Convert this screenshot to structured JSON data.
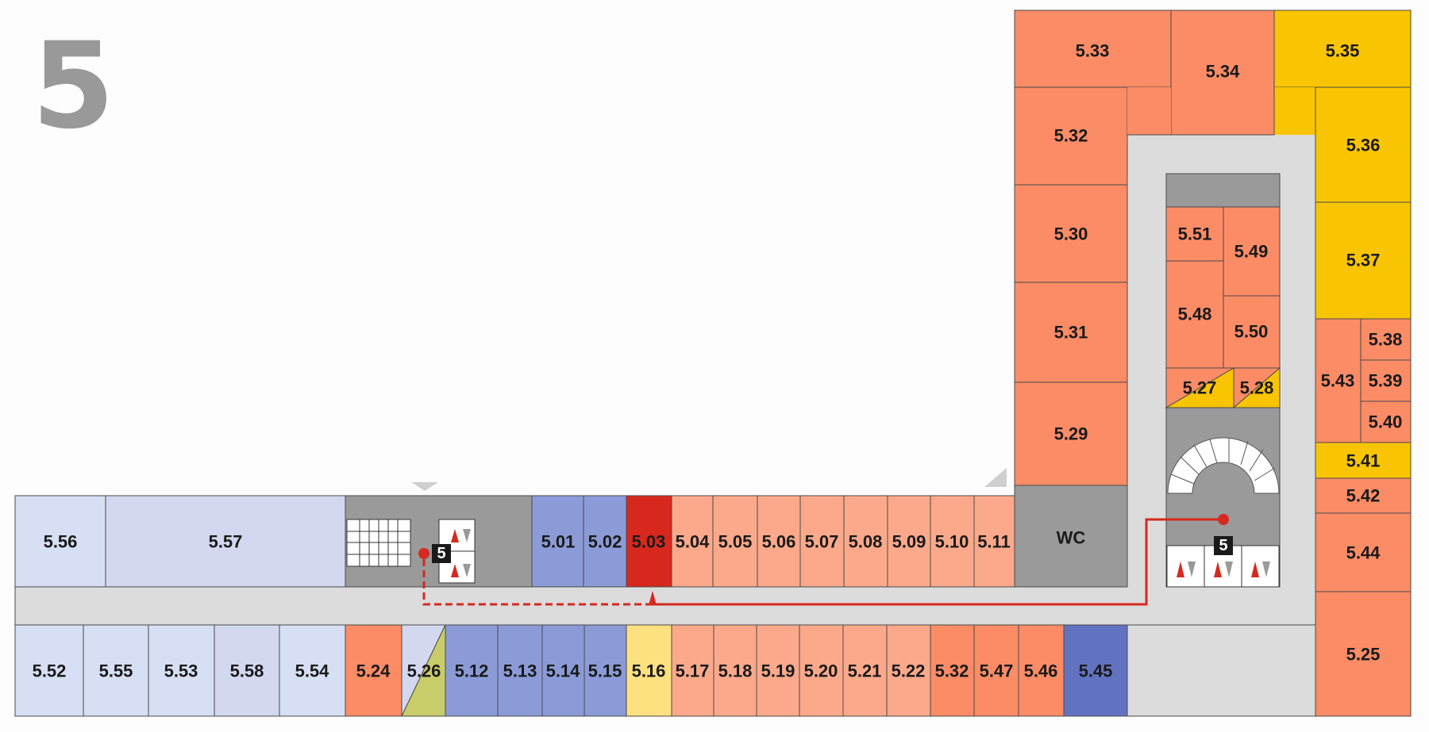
{
  "floor_number": "5",
  "colors": {
    "corridor": "#dcdcdc",
    "core_grey": "#9a9a9a",
    "light_blue": "#d6dff3",
    "lavender": "#d3d8f0",
    "mid_blue": "#8b9bd7",
    "dark_blue": "#6173c0",
    "red": "#d8281e",
    "light_salmon": "#fba98a",
    "salmon": "#fb8c66",
    "yellow": "#f9c502",
    "light_yellow": "#fde080",
    "olive": "#c8cd6a",
    "route": "#d42a20"
  },
  "rooms": {
    "r5_56": "5.56",
    "r5_57": "5.57",
    "r5_01": "5.01",
    "r5_02": "5.02",
    "r5_03": "5.03",
    "r5_04": "5.04",
    "r5_05": "5.05",
    "r5_06": "5.06",
    "r5_07": "5.07",
    "r5_08": "5.08",
    "r5_09": "5.09",
    "r5_10": "5.10",
    "r5_11": "5.11",
    "wc": "WC",
    "r5_52": "5.52",
    "r5_55": "5.55",
    "r5_53": "5.53",
    "r5_58": "5.58",
    "r5_54": "5.54",
    "r5_24": "5.24",
    "r5_26": "5.26",
    "r5_12": "5.12",
    "r5_13": "5.13",
    "r5_14": "5.14",
    "r5_15": "5.15",
    "r5_16": "5.16",
    "r5_17": "5.17",
    "r5_18": "5.18",
    "r5_19": "5.19",
    "r5_20": "5.20",
    "r5_21": "5.21",
    "r5_22": "5.22",
    "r5_32b": "5.32",
    "r5_47": "5.47",
    "r5_46": "5.46",
    "r5_45": "5.45",
    "r5_33": "5.33",
    "r5_34": "5.34",
    "r5_35": "5.35",
    "r5_32": "5.32",
    "r5_30": "5.30",
    "r5_31": "5.31",
    "r5_29": "5.29",
    "r5_36": "5.36",
    "r5_37": "5.37",
    "r5_51": "5.51",
    "r5_49": "5.49",
    "r5_48": "5.48",
    "r5_50": "5.50",
    "r5_27": "5.27",
    "r5_28": "5.28",
    "r5_38": "5.38",
    "r5_39": "5.39",
    "r5_40": "5.40",
    "r5_43": "5.43",
    "r5_41": "5.41",
    "r5_42": "5.42",
    "r5_44": "5.44",
    "r5_25": "5.25"
  },
  "elevator_badges": {
    "left": "5",
    "right": "5"
  }
}
